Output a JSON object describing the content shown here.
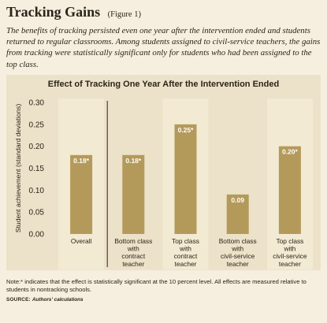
{
  "header": {
    "title": "Tracking Gains",
    "figure": "(Figure 1)",
    "intro": "The benefits of tracking persisted even one year after the intervention ended and students returned to regular classrooms. Among students assigned to civil-service teachers, the gains from tracking were statistically significant only for students who had been assigned to the top class."
  },
  "footer": {
    "note": "Note:* indicates that the effect is statistically significant at the 10 percent level. All effects are measured relative to students in nontracking schools.",
    "source_label": "SOURCE:",
    "source_text": "Authors' calculations"
  },
  "colors": {
    "bar": "#b49a5a",
    "band": "#f3ead3",
    "panel": "#ece2c9",
    "page": "#f6efdf",
    "text": "#2b2419"
  },
  "chart_data": {
    "type": "bar",
    "title": "Effect of Tracking One Year After the Intervention Ended",
    "ylabel": "Student achievement (standard deviations)",
    "xlabel": "",
    "ylim": [
      0,
      0.3
    ],
    "yticks": [
      "0.00",
      "0.05",
      "0.10",
      "0.15",
      "0.20",
      "0.25",
      "0.30"
    ],
    "grid": false,
    "categories": [
      [
        "Overall"
      ],
      [
        "Bottom class",
        "with",
        "contract",
        "teacher"
      ],
      [
        "Top class",
        "with",
        "contract",
        "teacher"
      ],
      [
        "Bottom class",
        "with",
        "civil-service",
        "teacher"
      ],
      [
        "Top class",
        "with",
        "civil-service",
        "teacher"
      ]
    ],
    "values": [
      0.18,
      0.18,
      0.25,
      0.09,
      0.2
    ],
    "labels": [
      "0.18*",
      "0.18*",
      "0.25*",
      "0.09",
      "0.20*"
    ],
    "shaded_bands": [
      true,
      false,
      true,
      false,
      true
    ],
    "divider_after_index": 0
  }
}
